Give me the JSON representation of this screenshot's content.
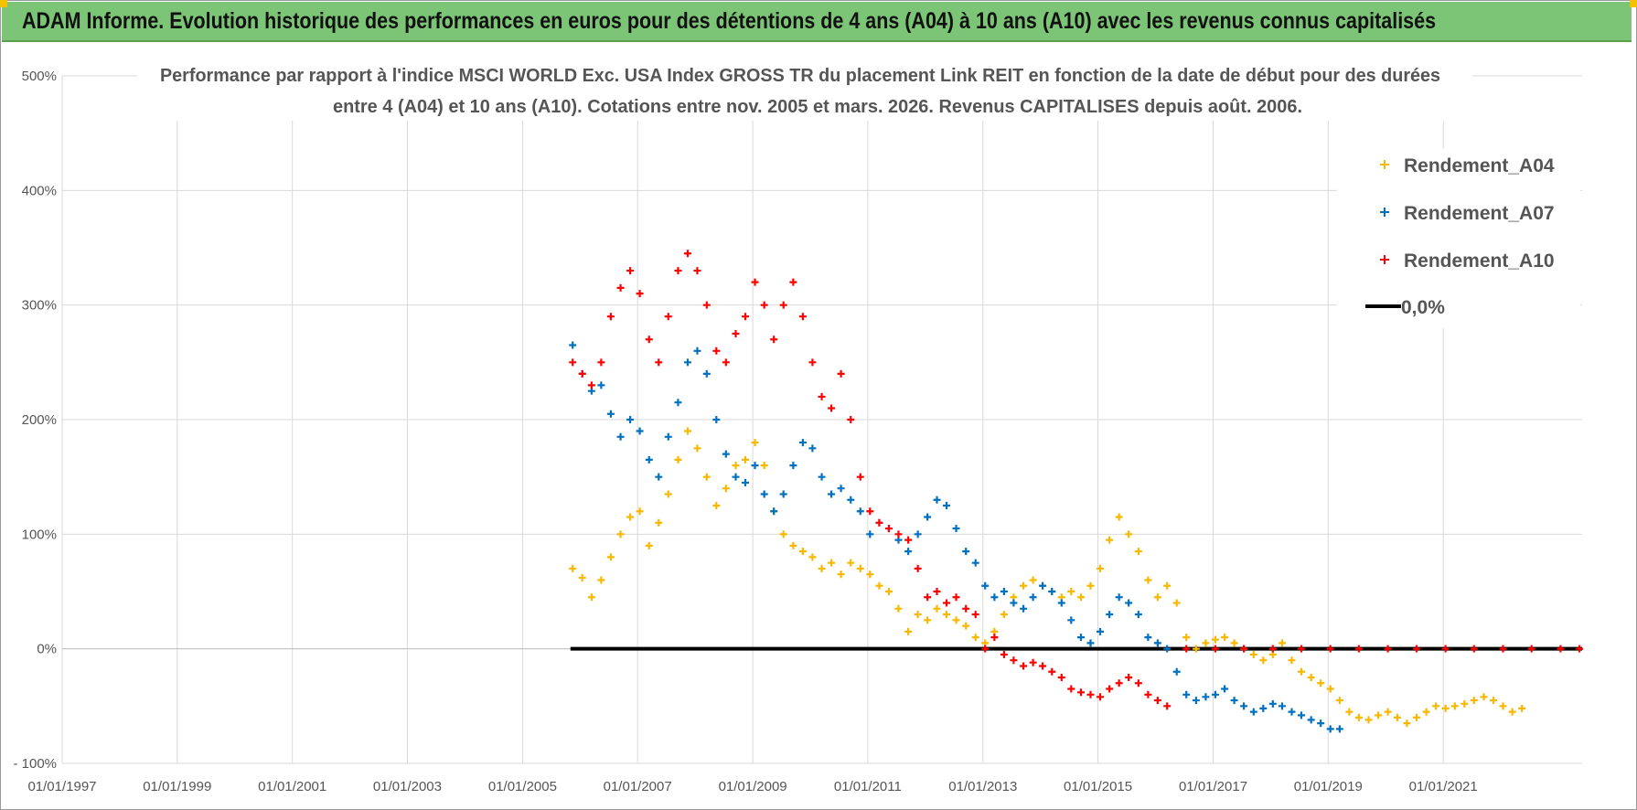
{
  "header": {
    "title": "ADAM Informe. Evolution historique des performances en euros pour des détentions de 4 ans (A04) à 10 ans (A10) avec les revenus connus capitalisés"
  },
  "chart_data": {
    "type": "scatter",
    "title_lines": [
      "Performance par rapport à l'indice MSCI WORLD Exc. USA Index GROSS TR  du placement Link REIT en fonction de la date de début pour des durées",
      "entre 4 (A04) et 10 ans (A10). Cotations entre nov. 2005 et mars. 2026. Revenus CAPITALISES depuis août. 2006."
    ],
    "xlabel": "",
    "ylabel": "",
    "x_tick_labels": [
      "01/01/1997",
      "01/01/1999",
      "01/01/2001",
      "01/01/2003",
      "01/01/2005",
      "01/01/2007",
      "01/01/2009",
      "01/01/2011",
      "01/01/2013",
      "01/01/2015",
      "01/01/2017",
      "01/01/2019",
      "01/01/2021"
    ],
    "y_tick_labels": [
      "- 100%",
      "0%",
      "100%",
      "200%",
      "300%",
      "400%",
      "500%"
    ],
    "xlim": [
      "1997-01-01",
      "2023-06-01"
    ],
    "ylim": [
      -100,
      500
    ],
    "grid": true,
    "legend_position": "top-right",
    "colors": {
      "A04": "#f7b800",
      "A07": "#0070c0",
      "A10": "#ff0000",
      "zero": "#000000"
    },
    "series": [
      {
        "name": "Rendement_A04",
        "marker": "+",
        "points": [
          [
            "2005-11-15",
            70
          ],
          [
            "2006-01-15",
            62
          ],
          [
            "2006-03-15",
            45
          ],
          [
            "2006-05-15",
            60
          ],
          [
            "2006-07-15",
            80
          ],
          [
            "2006-09-15",
            100
          ],
          [
            "2006-11-15",
            115
          ],
          [
            "2007-01-15",
            120
          ],
          [
            "2007-03-15",
            90
          ],
          [
            "2007-05-15",
            110
          ],
          [
            "2007-07-15",
            135
          ],
          [
            "2007-09-15",
            165
          ],
          [
            "2007-11-15",
            190
          ],
          [
            "2008-01-15",
            175
          ],
          [
            "2008-03-15",
            150
          ],
          [
            "2008-05-15",
            125
          ],
          [
            "2008-07-15",
            140
          ],
          [
            "2008-09-15",
            160
          ],
          [
            "2008-11-15",
            165
          ],
          [
            "2009-01-15",
            180
          ],
          [
            "2009-03-15",
            160
          ],
          [
            "2009-05-15",
            120
          ],
          [
            "2009-07-15",
            100
          ],
          [
            "2009-09-15",
            90
          ],
          [
            "2009-11-15",
            85
          ],
          [
            "2010-01-15",
            80
          ],
          [
            "2010-03-15",
            70
          ],
          [
            "2010-05-15",
            75
          ],
          [
            "2010-07-15",
            65
          ],
          [
            "2010-09-15",
            75
          ],
          [
            "2010-11-15",
            70
          ],
          [
            "2011-01-15",
            65
          ],
          [
            "2011-03-15",
            55
          ],
          [
            "2011-05-15",
            50
          ],
          [
            "2011-07-15",
            35
          ],
          [
            "2011-09-15",
            15
          ],
          [
            "2011-11-15",
            30
          ],
          [
            "2012-01-15",
            25
          ],
          [
            "2012-03-15",
            35
          ],
          [
            "2012-05-15",
            30
          ],
          [
            "2012-07-15",
            25
          ],
          [
            "2012-09-15",
            20
          ],
          [
            "2012-11-15",
            10
          ],
          [
            "2013-01-15",
            5
          ],
          [
            "2013-03-15",
            15
          ],
          [
            "2013-05-15",
            30
          ],
          [
            "2013-07-15",
            45
          ],
          [
            "2013-09-15",
            55
          ],
          [
            "2013-11-15",
            60
          ],
          [
            "2014-01-15",
            55
          ],
          [
            "2014-03-15",
            50
          ],
          [
            "2014-05-15",
            45
          ],
          [
            "2014-07-15",
            50
          ],
          [
            "2014-09-15",
            45
          ],
          [
            "2014-11-15",
            55
          ],
          [
            "2015-01-15",
            70
          ],
          [
            "2015-03-15",
            95
          ],
          [
            "2015-05-15",
            115
          ],
          [
            "2015-07-15",
            100
          ],
          [
            "2015-09-15",
            85
          ],
          [
            "2015-11-15",
            60
          ],
          [
            "2016-01-15",
            45
          ],
          [
            "2016-03-15",
            55
          ],
          [
            "2016-05-15",
            40
          ],
          [
            "2016-07-15",
            10
          ],
          [
            "2016-09-15",
            0
          ],
          [
            "2016-11-15",
            5
          ],
          [
            "2017-01-15",
            8
          ],
          [
            "2017-03-15",
            10
          ],
          [
            "2017-05-15",
            5
          ],
          [
            "2017-07-15",
            0
          ],
          [
            "2017-09-15",
            -5
          ],
          [
            "2017-11-15",
            -10
          ],
          [
            "2018-01-15",
            -5
          ],
          [
            "2018-03-15",
            5
          ],
          [
            "2018-05-15",
            -10
          ],
          [
            "2018-07-15",
            -20
          ],
          [
            "2018-09-15",
            -25
          ],
          [
            "2018-11-15",
            -30
          ],
          [
            "2019-01-15",
            -35
          ],
          [
            "2019-03-15",
            -45
          ],
          [
            "2019-05-15",
            -55
          ],
          [
            "2019-07-15",
            -60
          ],
          [
            "2019-09-15",
            -62
          ],
          [
            "2019-11-15",
            -58
          ],
          [
            "2020-01-15",
            -55
          ],
          [
            "2020-03-15",
            -60
          ],
          [
            "2020-05-15",
            -65
          ],
          [
            "2020-07-15",
            -60
          ],
          [
            "2020-09-15",
            -55
          ],
          [
            "2020-11-15",
            -50
          ],
          [
            "2021-01-15",
            -52
          ],
          [
            "2021-03-15",
            -50
          ],
          [
            "2021-05-15",
            -48
          ],
          [
            "2021-07-15",
            -45
          ],
          [
            "2021-09-15",
            -42
          ],
          [
            "2021-11-15",
            -45
          ],
          [
            "2022-01-15",
            -50
          ],
          [
            "2022-03-15",
            -55
          ],
          [
            "2022-05-15",
            -52
          ]
        ]
      },
      {
        "name": "Rendement_A07",
        "marker": "+",
        "points": [
          [
            "2005-11-15",
            265
          ],
          [
            "2006-01-15",
            240
          ],
          [
            "2006-03-15",
            225
          ],
          [
            "2006-05-15",
            230
          ],
          [
            "2006-07-15",
            205
          ],
          [
            "2006-09-15",
            185
          ],
          [
            "2006-11-15",
            200
          ],
          [
            "2007-01-15",
            190
          ],
          [
            "2007-03-15",
            165
          ],
          [
            "2007-05-15",
            150
          ],
          [
            "2007-07-15",
            185
          ],
          [
            "2007-09-15",
            215
          ],
          [
            "2007-11-15",
            250
          ],
          [
            "2008-01-15",
            260
          ],
          [
            "2008-03-15",
            240
          ],
          [
            "2008-05-15",
            200
          ],
          [
            "2008-07-15",
            170
          ],
          [
            "2008-09-15",
            150
          ],
          [
            "2008-11-15",
            145
          ],
          [
            "2009-01-15",
            160
          ],
          [
            "2009-03-15",
            135
          ],
          [
            "2009-05-15",
            120
          ],
          [
            "2009-07-15",
            135
          ],
          [
            "2009-09-15",
            160
          ],
          [
            "2009-11-15",
            180
          ],
          [
            "2010-01-15",
            175
          ],
          [
            "2010-03-15",
            150
          ],
          [
            "2010-05-15",
            135
          ],
          [
            "2010-07-15",
            140
          ],
          [
            "2010-09-15",
            130
          ],
          [
            "2010-11-15",
            120
          ],
          [
            "2011-01-15",
            100
          ],
          [
            "2011-03-15",
            110
          ],
          [
            "2011-05-15",
            105
          ],
          [
            "2011-07-15",
            95
          ],
          [
            "2011-09-15",
            85
          ],
          [
            "2011-11-15",
            100
          ],
          [
            "2012-01-15",
            115
          ],
          [
            "2012-03-15",
            130
          ],
          [
            "2012-05-15",
            125
          ],
          [
            "2012-07-15",
            105
          ],
          [
            "2012-09-15",
            85
          ],
          [
            "2012-11-15",
            75
          ],
          [
            "2013-01-15",
            55
          ],
          [
            "2013-03-15",
            45
          ],
          [
            "2013-05-15",
            50
          ],
          [
            "2013-07-15",
            40
          ],
          [
            "2013-09-15",
            35
          ],
          [
            "2013-11-15",
            45
          ],
          [
            "2014-01-15",
            55
          ],
          [
            "2014-03-15",
            50
          ],
          [
            "2014-05-15",
            40
          ],
          [
            "2014-07-15",
            25
          ],
          [
            "2014-09-15",
            10
          ],
          [
            "2014-11-15",
            5
          ],
          [
            "2015-01-15",
            15
          ],
          [
            "2015-03-15",
            30
          ],
          [
            "2015-05-15",
            45
          ],
          [
            "2015-07-15",
            40
          ],
          [
            "2015-09-15",
            30
          ],
          [
            "2015-11-15",
            10
          ],
          [
            "2016-01-15",
            5
          ],
          [
            "2016-03-15",
            0
          ],
          [
            "2016-05-15",
            -20
          ],
          [
            "2016-07-15",
            -40
          ],
          [
            "2016-09-15",
            -45
          ],
          [
            "2016-11-15",
            -42
          ],
          [
            "2017-01-15",
            -40
          ],
          [
            "2017-03-15",
            -35
          ],
          [
            "2017-05-15",
            -45
          ],
          [
            "2017-07-15",
            -50
          ],
          [
            "2017-09-15",
            -55
          ],
          [
            "2017-11-15",
            -52
          ],
          [
            "2018-01-15",
            -48
          ],
          [
            "2018-03-15",
            -50
          ],
          [
            "2018-05-15",
            -55
          ],
          [
            "2018-07-15",
            -58
          ],
          [
            "2018-09-15",
            -62
          ],
          [
            "2018-11-15",
            -65
          ],
          [
            "2019-01-15",
            -70
          ],
          [
            "2019-03-15",
            -70
          ]
        ]
      },
      {
        "name": "Rendement_A10",
        "marker": "+",
        "points": [
          [
            "2005-11-15",
            250
          ],
          [
            "2006-01-15",
            240
          ],
          [
            "2006-03-15",
            230
          ],
          [
            "2006-05-15",
            250
          ],
          [
            "2006-07-15",
            290
          ],
          [
            "2006-09-15",
            315
          ],
          [
            "2006-11-15",
            330
          ],
          [
            "2007-01-15",
            310
          ],
          [
            "2007-03-15",
            270
          ],
          [
            "2007-05-15",
            250
          ],
          [
            "2007-07-15",
            290
          ],
          [
            "2007-09-15",
            330
          ],
          [
            "2007-11-15",
            345
          ],
          [
            "2008-01-15",
            330
          ],
          [
            "2008-03-15",
            300
          ],
          [
            "2008-05-15",
            260
          ],
          [
            "2008-07-15",
            250
          ],
          [
            "2008-09-15",
            275
          ],
          [
            "2008-11-15",
            290
          ],
          [
            "2009-01-15",
            320
          ],
          [
            "2009-03-15",
            300
          ],
          [
            "2009-05-15",
            270
          ],
          [
            "2009-07-15",
            300
          ],
          [
            "2009-09-15",
            320
          ],
          [
            "2009-11-15",
            290
          ],
          [
            "2010-01-15",
            250
          ],
          [
            "2010-03-15",
            220
          ],
          [
            "2010-05-15",
            210
          ],
          [
            "2010-07-15",
            240
          ],
          [
            "2010-09-15",
            200
          ],
          [
            "2010-11-15",
            150
          ],
          [
            "2011-01-15",
            120
          ],
          [
            "2011-03-15",
            110
          ],
          [
            "2011-05-15",
            105
          ],
          [
            "2011-07-15",
            100
          ],
          [
            "2011-09-15",
            95
          ],
          [
            "2011-11-15",
            70
          ],
          [
            "2012-01-15",
            45
          ],
          [
            "2012-03-15",
            50
          ],
          [
            "2012-05-15",
            40
          ],
          [
            "2012-07-15",
            45
          ],
          [
            "2012-09-15",
            35
          ],
          [
            "2012-11-15",
            30
          ],
          [
            "2013-01-15",
            0
          ],
          [
            "2013-03-15",
            10
          ],
          [
            "2013-05-15",
            -5
          ],
          [
            "2013-07-15",
            -10
          ],
          [
            "2013-09-15",
            -15
          ],
          [
            "2013-11-15",
            -12
          ],
          [
            "2014-01-15",
            -15
          ],
          [
            "2014-03-15",
            -20
          ],
          [
            "2014-05-15",
            -25
          ],
          [
            "2014-07-15",
            -35
          ],
          [
            "2014-09-15",
            -38
          ],
          [
            "2014-11-15",
            -40
          ],
          [
            "2015-01-15",
            -42
          ],
          [
            "2015-03-15",
            -35
          ],
          [
            "2015-05-15",
            -30
          ],
          [
            "2015-07-15",
            -25
          ],
          [
            "2015-09-15",
            -30
          ],
          [
            "2015-11-15",
            -40
          ],
          [
            "2016-01-15",
            -45
          ],
          [
            "2016-03-15",
            -50
          ],
          [
            "2016-07-15",
            0
          ],
          [
            "2017-01-15",
            0
          ],
          [
            "2017-07-15",
            0
          ],
          [
            "2018-01-15",
            0
          ],
          [
            "2018-07-15",
            0
          ],
          [
            "2019-01-15",
            0
          ],
          [
            "2019-07-15",
            0
          ],
          [
            "2020-01-15",
            0
          ],
          [
            "2020-07-15",
            0
          ],
          [
            "2021-01-15",
            0
          ],
          [
            "2021-07-15",
            0
          ],
          [
            "2022-01-15",
            0
          ],
          [
            "2022-07-15",
            0
          ],
          [
            "2023-01-15",
            0
          ],
          [
            "2023-05-15",
            0
          ]
        ]
      },
      {
        "name": "0,0%",
        "marker": "line",
        "x_range": [
          "2005-11-01",
          "2023-06-01"
        ],
        "value": 0
      }
    ]
  }
}
